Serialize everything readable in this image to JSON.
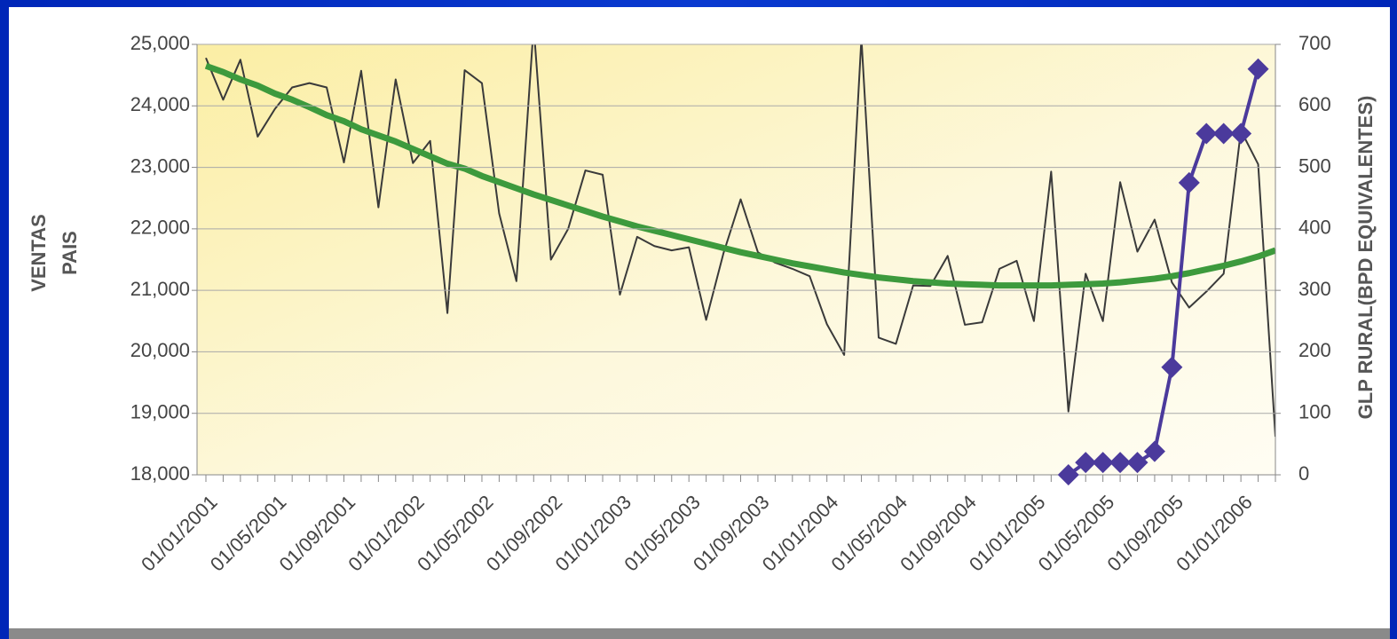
{
  "chart_data": {
    "type": "line",
    "categories": [
      "01/01/2001",
      null,
      null,
      null,
      "01/05/2001",
      null,
      null,
      null,
      "01/09/2001",
      null,
      null,
      null,
      "01/01/2002",
      null,
      null,
      null,
      "01/05/2002",
      null,
      null,
      null,
      "01/09/2002",
      null,
      null,
      null,
      "01/01/2003",
      null,
      null,
      null,
      "01/05/2003",
      null,
      null,
      null,
      "01/09/2003",
      null,
      null,
      null,
      "01/01/2004",
      null,
      null,
      null,
      "01/05/2004",
      null,
      null,
      null,
      "01/09/2004",
      null,
      null,
      null,
      "01/01/2005",
      null,
      null,
      null,
      "01/05/2005",
      null,
      null,
      null,
      "01/09/2005",
      null,
      null,
      null,
      "01/01/2006",
      null,
      null
    ],
    "ylabel": [
      "VENTAS",
      "PAIS"
    ],
    "y2label": "GLP RURAL(BPD EQUIVALENTES)",
    "series": [
      {
        "color": "#3a3a3a",
        "values": [
          24780,
          24100,
          24750,
          23500,
          23950,
          24300,
          24370,
          24300,
          23080,
          24570,
          22350,
          24430,
          23070,
          23430,
          20630,
          24580,
          24370,
          22250,
          21150,
          25300,
          21500,
          22000,
          22950,
          22880,
          20930,
          21870,
          21720,
          21650,
          21700,
          20520,
          21600,
          22480,
          21620,
          21450,
          21350,
          21230,
          20450,
          19950,
          25100,
          20230,
          20130,
          21080,
          21070,
          21560,
          20440,
          20480,
          21350,
          21480,
          20500,
          22930,
          19030,
          21270,
          20500,
          22760,
          21630,
          22150,
          21130,
          20720,
          20980,
          21270,
          23600,
          23050,
          18620
        ]
      },
      {
        "color": "#3d9a3d",
        "values": [
          24650,
          24550,
          24430,
          24330,
          24200,
          24100,
          23980,
          23850,
          23750,
          23620,
          23520,
          23420,
          23300,
          23180,
          23060,
          22980,
          22860,
          22760,
          22660,
          22560,
          22470,
          22380,
          22290,
          22200,
          22120,
          22040,
          21970,
          21900,
          21830,
          21760,
          21690,
          21620,
          21560,
          21500,
          21440,
          21390,
          21340,
          21290,
          21250,
          21210,
          21180,
          21150,
          21130,
          21110,
          21100,
          21090,
          21080,
          21080,
          21080,
          21080,
          21090,
          21100,
          21110,
          21130,
          21160,
          21190,
          21230,
          21280,
          21340,
          21400,
          21470,
          21550,
          21650
        ]
      },
      {
        "color": "#4b3a9c",
        "axis": "y2",
        "marker": "diamond",
        "values": [
          null,
          null,
          null,
          null,
          null,
          null,
          null,
          null,
          null,
          null,
          null,
          null,
          null,
          null,
          null,
          null,
          null,
          null,
          null,
          null,
          null,
          null,
          null,
          null,
          null,
          null,
          null,
          null,
          null,
          null,
          null,
          null,
          null,
          null,
          null,
          null,
          null,
          null,
          null,
          null,
          null,
          null,
          null,
          null,
          null,
          null,
          null,
          null,
          null,
          null,
          0,
          20,
          20,
          20,
          20,
          38,
          175,
          475,
          555,
          555,
          555,
          660,
          null
        ]
      }
    ],
    "ylim": [
      18000,
      25000
    ],
    "yticks": [
      {
        "value": 18000,
        "label": "18,000"
      },
      {
        "value": 19000,
        "label": "19,000"
      },
      {
        "value": 20000,
        "label": "20,000"
      },
      {
        "value": 21000,
        "label": "21,000"
      },
      {
        "value": 22000,
        "label": "22,000"
      },
      {
        "value": 23000,
        "label": "23,000"
      },
      {
        "value": 24000,
        "label": "24,000"
      },
      {
        "value": 25000,
        "label": "25,000"
      }
    ],
    "y2lim": [
      0,
      700
    ],
    "y2ticks": [
      0,
      100,
      200,
      300,
      400,
      500,
      600,
      700
    ],
    "grid": true
  }
}
